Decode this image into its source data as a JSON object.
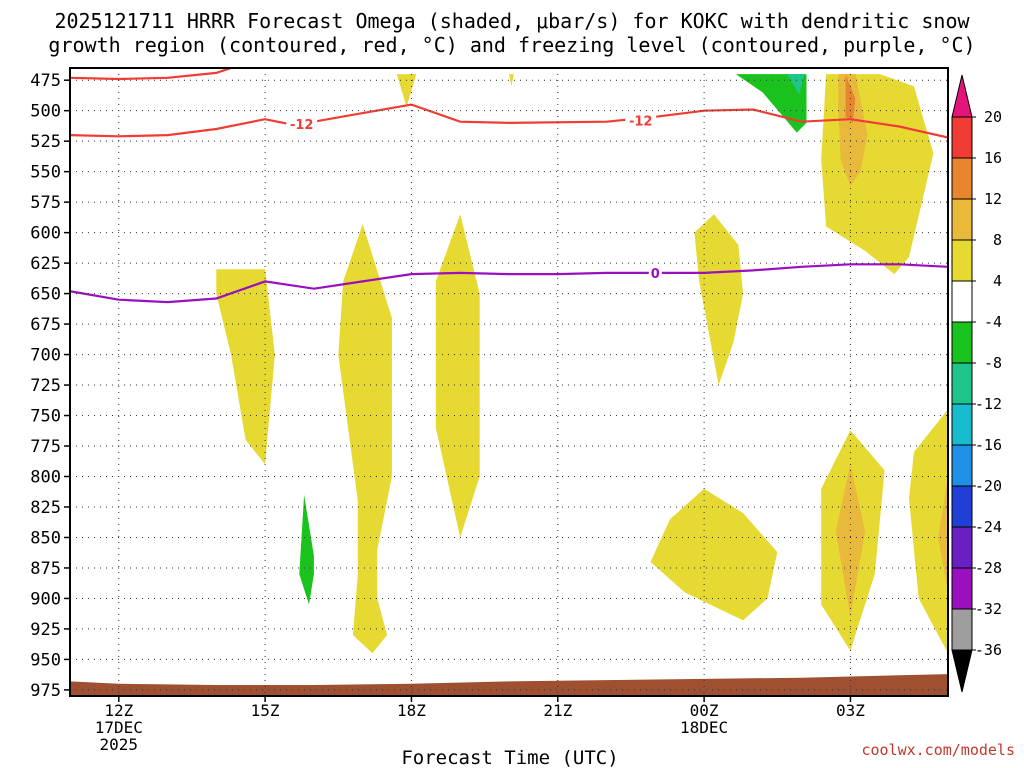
{
  "chart_data": {
    "type": "contour",
    "title_line1": "2025121711 HRRR Forecast Omega (shaded, μbar/s) for KOKC with dendritic snow",
    "title_line2": "growth region (contoured, red, °C) and freezing level (contoured, purple, °C)",
    "xlabel": "Forecast Time (UTC)",
    "credit": "coolwx.com/models",
    "x_range_hours": [
      -1,
      17
    ],
    "y_levels": [
      475,
      500,
      525,
      550,
      575,
      600,
      625,
      650,
      675,
      700,
      725,
      750,
      775,
      800,
      825,
      850,
      875,
      900,
      925,
      950,
      975
    ],
    "y_range": [
      465,
      980
    ],
    "x_ticks": [
      {
        "t": 0,
        "lines": [
          "12Z",
          "17DEC",
          "2025"
        ]
      },
      {
        "t": 3,
        "lines": [
          "15Z"
        ]
      },
      {
        "t": 6,
        "lines": [
          "18Z"
        ]
      },
      {
        "t": 9,
        "lines": [
          "21Z"
        ]
      },
      {
        "t": 12,
        "lines": [
          "00Z",
          "18DEC"
        ]
      },
      {
        "t": 15,
        "lines": [
          "03Z"
        ]
      }
    ],
    "colorbar": {
      "top_color": "#e5147a",
      "bottom_color": "#000000",
      "bins": [
        {
          "from": 20,
          "to": 16,
          "color": "#f03c34"
        },
        {
          "from": 16,
          "to": 12,
          "color": "#e8862d"
        },
        {
          "from": 12,
          "to": 8,
          "color": "#e8b93a"
        },
        {
          "from": 8,
          "to": 4,
          "color": "#e6d932"
        },
        {
          "from": 4,
          "to": -4,
          "color": "#ffffff"
        },
        {
          "from": -4,
          "to": -8,
          "color": "#19c21d"
        },
        {
          "from": -8,
          "to": -12,
          "color": "#1ec58a"
        },
        {
          "from": -12,
          "to": -16,
          "color": "#17bccf"
        },
        {
          "from": -16,
          "to": -20,
          "color": "#1f8fe8"
        },
        {
          "from": -20,
          "to": -24,
          "color": "#1f3fd6"
        },
        {
          "from": -24,
          "to": -28,
          "color": "#6a1fc4"
        },
        {
          "from": -28,
          "to": -32,
          "color": "#9a0fc0"
        },
        {
          "from": -32,
          "to": -36,
          "color": "#9e9e9e"
        }
      ],
      "labels": [
        "20",
        "16",
        "12",
        "8",
        "4",
        "-4",
        "-8",
        "-12",
        "-16",
        "-20",
        "-24",
        "-28",
        "-32",
        "-36"
      ]
    },
    "omega_regions": [
      {
        "color": "#e6d932",
        "pts": [
          [
            2.0,
            630
          ],
          [
            3.0,
            630
          ],
          [
            3.2,
            700
          ],
          [
            3.0,
            790
          ],
          [
            2.6,
            770
          ],
          [
            2.3,
            700
          ],
          [
            2.0,
            650
          ]
        ]
      },
      {
        "color": "#e6d932",
        "pts": [
          [
            5.0,
            593
          ],
          [
            5.6,
            670
          ],
          [
            5.6,
            800
          ],
          [
            5.3,
            860
          ],
          [
            5.3,
            900
          ],
          [
            5.5,
            930
          ],
          [
            5.2,
            945
          ],
          [
            4.8,
            930
          ],
          [
            4.9,
            880
          ],
          [
            4.9,
            820
          ],
          [
            4.5,
            700
          ],
          [
            4.6,
            640
          ]
        ]
      },
      {
        "color": "#e6d932",
        "pts": [
          [
            7.0,
            585
          ],
          [
            7.4,
            650
          ],
          [
            7.4,
            800
          ],
          [
            7.0,
            850
          ],
          [
            6.5,
            760
          ],
          [
            6.5,
            640
          ]
        ]
      },
      {
        "color": "#e6d932",
        "pts": [
          [
            5.7,
            470
          ],
          [
            6.1,
            470
          ],
          [
            5.9,
            497
          ]
        ]
      },
      {
        "color": "#e6d932",
        "pts": [
          [
            8.0,
            470
          ],
          [
            8.1,
            470
          ],
          [
            8.05,
            480
          ]
        ]
      },
      {
        "color": "#19c21d",
        "pts": [
          [
            3.8,
            815
          ],
          [
            4.0,
            865
          ],
          [
            4.0,
            880
          ],
          [
            3.9,
            905
          ],
          [
            3.7,
            880
          ]
        ]
      },
      {
        "color": "#e6d932",
        "pts": [
          [
            12.2,
            585
          ],
          [
            12.7,
            610
          ],
          [
            12.8,
            650
          ],
          [
            12.6,
            690
          ],
          [
            12.3,
            725
          ],
          [
            11.9,
            640
          ],
          [
            11.8,
            600
          ]
        ]
      },
      {
        "color": "#e6d932",
        "pts": [
          [
            12.0,
            810
          ],
          [
            12.8,
            830
          ],
          [
            13.5,
            862
          ],
          [
            13.3,
            900
          ],
          [
            12.8,
            918
          ],
          [
            11.6,
            895
          ],
          [
            10.9,
            870
          ],
          [
            11.3,
            835
          ]
        ]
      },
      {
        "color": "#e6d932",
        "pts": [
          [
            14.5,
            470
          ],
          [
            15.6,
            470
          ],
          [
            16.3,
            480
          ],
          [
            16.7,
            535
          ],
          [
            16.2,
            620
          ],
          [
            15.9,
            634
          ],
          [
            15.3,
            615
          ],
          [
            14.5,
            595
          ],
          [
            14.4,
            540
          ]
        ]
      },
      {
        "color": "#e8b93a",
        "pts": [
          [
            14.75,
            470
          ],
          [
            15.1,
            470
          ],
          [
            15.35,
            520
          ],
          [
            15.2,
            550
          ],
          [
            15.0,
            562
          ],
          [
            14.8,
            540
          ],
          [
            14.75,
            500
          ]
        ]
      },
      {
        "color": "#e8862d",
        "pts": [
          [
            14.9,
            470
          ],
          [
            15.1,
            490
          ],
          [
            15.05,
            510
          ],
          [
            14.9,
            505
          ]
        ]
      },
      {
        "color": "#19c21d",
        "pts": [
          [
            12.65,
            470
          ],
          [
            14.1,
            470
          ],
          [
            14.1,
            510
          ],
          [
            13.9,
            518
          ],
          [
            13.2,
            485
          ]
        ]
      },
      {
        "color": "#1ec58a",
        "pts": [
          [
            13.7,
            470
          ],
          [
            14.05,
            470
          ],
          [
            13.95,
            487
          ]
        ]
      },
      {
        "color": "#e6d932",
        "pts": [
          [
            15.0,
            762
          ],
          [
            15.7,
            795
          ],
          [
            15.5,
            880
          ],
          [
            15.1,
            930
          ],
          [
            15.0,
            943
          ],
          [
            14.4,
            905
          ],
          [
            14.4,
            810
          ]
        ]
      },
      {
        "color": "#e8b93a",
        "pts": [
          [
            15.0,
            790
          ],
          [
            15.3,
            845
          ],
          [
            15.0,
            915
          ],
          [
            14.7,
            845
          ]
        ]
      },
      {
        "color": "#e6d932",
        "pts": [
          [
            17.0,
            745
          ],
          [
            17.0,
            945
          ],
          [
            16.4,
            900
          ],
          [
            16.2,
            818
          ],
          [
            16.3,
            780
          ]
        ]
      },
      {
        "color": "#e8b93a",
        "pts": [
          [
            17.0,
            800
          ],
          [
            17.0,
            895
          ],
          [
            16.8,
            850
          ]
        ]
      }
    ],
    "dgz_minus12_line": {
      "label": "-12",
      "color": "#f03c34",
      "pts": [
        [
          -1,
          520
        ],
        [
          0,
          521
        ],
        [
          1,
          520
        ],
        [
          2,
          515
        ],
        [
          3,
          507
        ],
        [
          3.5,
          511
        ],
        [
          4,
          509
        ],
        [
          5,
          502
        ],
        [
          6,
          495
        ],
        [
          7,
          509
        ],
        [
          8,
          510
        ],
        [
          10,
          509
        ],
        [
          11,
          505
        ],
        [
          12,
          500
        ],
        [
          13,
          499
        ],
        [
          14,
          509
        ],
        [
          15,
          507
        ],
        [
          16,
          513
        ],
        [
          17,
          522
        ]
      ]
    },
    "dgz_minus12_upper": {
      "color": "#f03c34",
      "pts": [
        [
          -1,
          473
        ],
        [
          0,
          474
        ],
        [
          1,
          473
        ],
        [
          2,
          469
        ],
        [
          2.3,
          465
        ]
      ]
    },
    "freezing_level_line": {
      "label": "0",
      "color": "#9a0fc0",
      "pts": [
        [
          -1,
          648
        ],
        [
          0,
          655
        ],
        [
          1,
          657
        ],
        [
          2,
          654
        ],
        [
          3,
          640
        ],
        [
          4,
          646
        ],
        [
          5,
          640
        ],
        [
          6,
          634
        ],
        [
          7,
          633
        ],
        [
          8,
          634
        ],
        [
          9,
          634
        ],
        [
          10,
          633
        ],
        [
          11,
          633
        ],
        [
          12,
          633
        ],
        [
          13,
          631
        ],
        [
          14,
          628
        ],
        [
          15,
          626
        ],
        [
          16,
          626
        ],
        [
          17,
          628
        ]
      ]
    },
    "terrain": {
      "color": "#9e5030",
      "pts": [
        [
          -1,
          968
        ],
        [
          0,
          970
        ],
        [
          2,
          971
        ],
        [
          4,
          971
        ],
        [
          6,
          970
        ],
        [
          8,
          968
        ],
        [
          10,
          967
        ],
        [
          12,
          966
        ],
        [
          14,
          965
        ],
        [
          16,
          963
        ],
        [
          17,
          962
        ]
      ]
    },
    "contour_labels": [
      {
        "text": "-12",
        "t": 3.75,
        "p": 511,
        "color": "#f03c34"
      },
      {
        "text": "-12",
        "t": 10.7,
        "p": 508,
        "color": "#f03c34"
      },
      {
        "text": "0",
        "t": 11.0,
        "p": 633,
        "color": "#9a0fc0"
      }
    ]
  }
}
